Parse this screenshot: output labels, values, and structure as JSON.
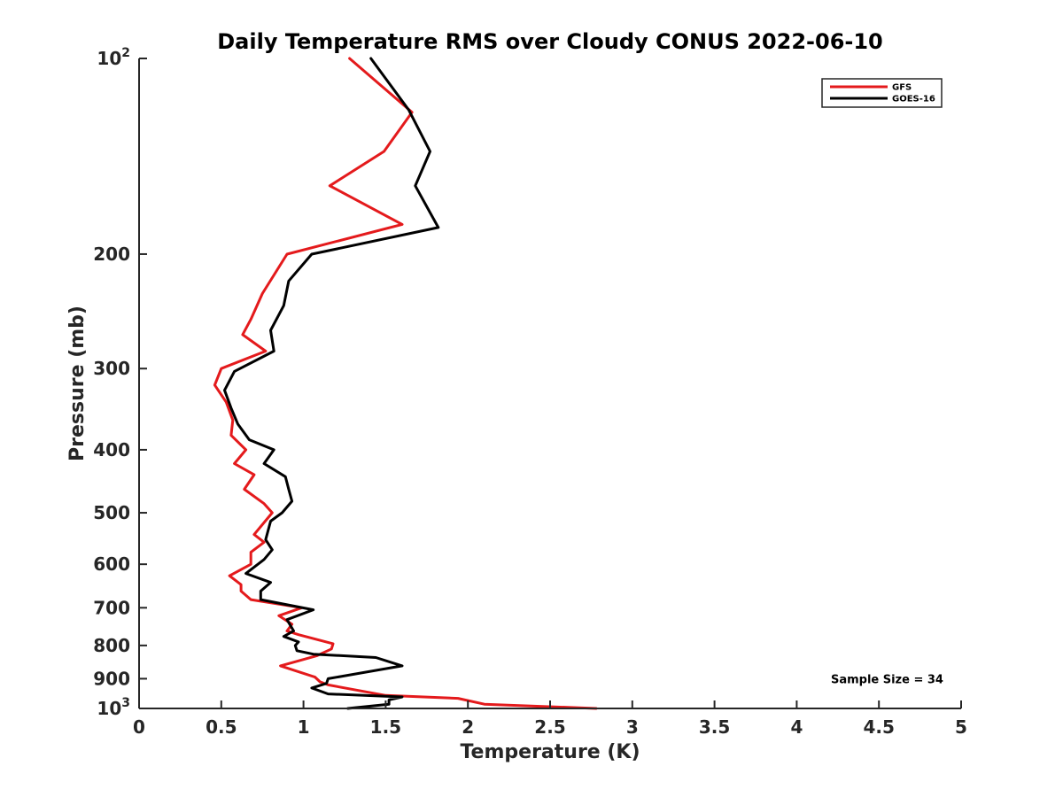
{
  "chart_data": {
    "type": "line",
    "title": "Daily Temperature RMS over Cloudy CONUS 2022-06-10",
    "xlabel": "Temperature (K)",
    "ylabel": "Pressure (mb)",
    "xlim": [
      0,
      5
    ],
    "ylim": [
      100,
      1000
    ],
    "y_scale": "log",
    "y_reversed": true,
    "x_ticks": [
      "0",
      "0.5",
      "1",
      "1.5",
      "2",
      "2.5",
      "3",
      "3.5",
      "4",
      "4.5",
      "5"
    ],
    "y_ticks": [
      {
        "value": 100,
        "label": "10",
        "sup": "2"
      },
      {
        "value": 200,
        "label": "200",
        "sup": ""
      },
      {
        "value": 300,
        "label": "300",
        "sup": ""
      },
      {
        "value": 400,
        "label": "400",
        "sup": ""
      },
      {
        "value": 500,
        "label": "500",
        "sup": ""
      },
      {
        "value": 600,
        "label": "600",
        "sup": ""
      },
      {
        "value": 700,
        "label": "700",
        "sup": ""
      },
      {
        "value": 800,
        "label": "800",
        "sup": ""
      },
      {
        "value": 900,
        "label": "900",
        "sup": ""
      },
      {
        "value": 1000,
        "label": "10",
        "sup": "3"
      }
    ],
    "grid": false,
    "legend_position": "top-right",
    "series": [
      {
        "name": "GFS",
        "color": "#e41a1c",
        "points": [
          [
            1.28,
            100
          ],
          [
            1.66,
            121
          ],
          [
            1.49,
            139
          ],
          [
            1.16,
            157
          ],
          [
            1.6,
            180
          ],
          [
            0.9,
            200
          ],
          [
            0.75,
            230
          ],
          [
            0.68,
            252
          ],
          [
            0.63,
            266
          ],
          [
            0.77,
            282
          ],
          [
            0.5,
            300
          ],
          [
            0.46,
            318
          ],
          [
            0.53,
            338
          ],
          [
            0.57,
            360
          ],
          [
            0.56,
            380
          ],
          [
            0.65,
            400
          ],
          [
            0.58,
            420
          ],
          [
            0.7,
            437
          ],
          [
            0.64,
            460
          ],
          [
            0.76,
            484
          ],
          [
            0.81,
            500
          ],
          [
            0.7,
            540
          ],
          [
            0.76,
            555
          ],
          [
            0.68,
            575
          ],
          [
            0.68,
            600
          ],
          [
            0.55,
            625
          ],
          [
            0.62,
            645
          ],
          [
            0.62,
            660
          ],
          [
            0.68,
            680
          ],
          [
            0.99,
            700
          ],
          [
            0.85,
            720
          ],
          [
            0.93,
            742
          ],
          [
            0.9,
            760
          ],
          [
            0.97,
            770
          ],
          [
            1.18,
            795
          ],
          [
            1.17,
            810
          ],
          [
            1.08,
            830
          ],
          [
            0.86,
            860
          ],
          [
            1.07,
            895
          ],
          [
            1.1,
            910
          ],
          [
            1.15,
            920
          ],
          [
            1.5,
            955
          ],
          [
            1.94,
            965
          ],
          [
            2.1,
            985
          ],
          [
            2.78,
            1000
          ]
        ]
      },
      {
        "name": "GOES-16",
        "color": "#000000",
        "points": [
          [
            1.41,
            100
          ],
          [
            1.64,
            120
          ],
          [
            1.77,
            139
          ],
          [
            1.68,
            157
          ],
          [
            1.82,
            182
          ],
          [
            1.05,
            200
          ],
          [
            0.91,
            220
          ],
          [
            0.88,
            240
          ],
          [
            0.8,
            262
          ],
          [
            0.82,
            282
          ],
          [
            0.58,
            303
          ],
          [
            0.52,
            324
          ],
          [
            0.56,
            345
          ],
          [
            0.6,
            365
          ],
          [
            0.67,
            386
          ],
          [
            0.82,
            400
          ],
          [
            0.76,
            420
          ],
          [
            0.89,
            440
          ],
          [
            0.91,
            460
          ],
          [
            0.93,
            480
          ],
          [
            0.87,
            500
          ],
          [
            0.8,
            515
          ],
          [
            0.77,
            550
          ],
          [
            0.81,
            570
          ],
          [
            0.76,
            590
          ],
          [
            0.65,
            620
          ],
          [
            0.8,
            640
          ],
          [
            0.74,
            660
          ],
          [
            0.74,
            680
          ],
          [
            1.06,
            705
          ],
          [
            0.9,
            730
          ],
          [
            0.94,
            760
          ],
          [
            0.88,
            775
          ],
          [
            0.97,
            790
          ],
          [
            0.95,
            800
          ],
          [
            0.96,
            815
          ],
          [
            1.06,
            825
          ],
          [
            1.44,
            835
          ],
          [
            1.6,
            860
          ],
          [
            1.15,
            900
          ],
          [
            1.14,
            915
          ],
          [
            1.05,
            930
          ],
          [
            1.15,
            950
          ],
          [
            1.6,
            960
          ],
          [
            1.52,
            970
          ],
          [
            1.52,
            985
          ],
          [
            1.27,
            1000
          ]
        ]
      }
    ],
    "annotations": [
      {
        "text": "Sample Size = 34",
        "x": 4.55,
        "y": 900
      }
    ]
  }
}
